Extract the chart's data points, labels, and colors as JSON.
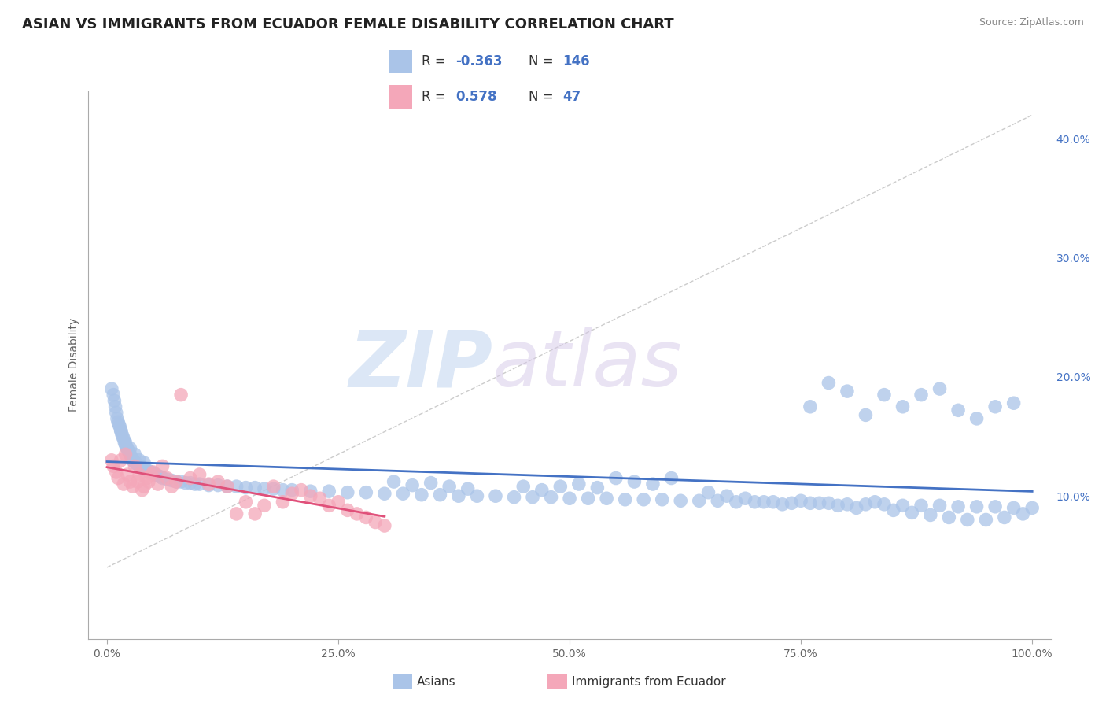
{
  "title": "ASIAN VS IMMIGRANTS FROM ECUADOR FEMALE DISABILITY CORRELATION CHART",
  "source": "Source: ZipAtlas.com",
  "ylabel": "Female Disability",
  "xlim": [
    -0.02,
    1.02
  ],
  "ylim": [
    -0.02,
    0.44
  ],
  "yticks": [
    0.1,
    0.2,
    0.3,
    0.4
  ],
  "ytick_labels": [
    "10.0%",
    "20.0%",
    "30.0%",
    "40.0%"
  ],
  "xticks": [
    0.0,
    0.25,
    0.5,
    0.75,
    1.0
  ],
  "xtick_labels": [
    "0.0%",
    "25.0%",
    "50.0%",
    "75.0%",
    "100.0%"
  ],
  "color_asian": "#aac4e8",
  "color_ecuador": "#f4a7b9",
  "trend_color_asian": "#4472c4",
  "trend_color_ecuador": "#e0507a",
  "watermark_zip": "ZIP",
  "watermark_atlas": "atlas",
  "title_fontsize": 13,
  "axis_label_fontsize": 10,
  "tick_fontsize": 10,
  "grid_color": "#cccccc",
  "background_color": "#ffffff",
  "asian_x": [
    0.005,
    0.007,
    0.008,
    0.009,
    0.01,
    0.011,
    0.012,
    0.013,
    0.014,
    0.015,
    0.016,
    0.017,
    0.018,
    0.019,
    0.02,
    0.021,
    0.022,
    0.023,
    0.024,
    0.025,
    0.026,
    0.027,
    0.028,
    0.029,
    0.03,
    0.032,
    0.034,
    0.036,
    0.038,
    0.04,
    0.042,
    0.045,
    0.048,
    0.05,
    0.053,
    0.055,
    0.058,
    0.06,
    0.065,
    0.07,
    0.075,
    0.08,
    0.085,
    0.09,
    0.095,
    0.1,
    0.11,
    0.12,
    0.13,
    0.14,
    0.15,
    0.16,
    0.17,
    0.18,
    0.19,
    0.2,
    0.22,
    0.24,
    0.26,
    0.28,
    0.3,
    0.32,
    0.34,
    0.36,
    0.38,
    0.4,
    0.42,
    0.44,
    0.46,
    0.48,
    0.5,
    0.52,
    0.54,
    0.56,
    0.58,
    0.6,
    0.62,
    0.64,
    0.66,
    0.68,
    0.7,
    0.72,
    0.74,
    0.76,
    0.78,
    0.8,
    0.82,
    0.84,
    0.86,
    0.88,
    0.9,
    0.92,
    0.94,
    0.96,
    0.98,
    1.0,
    0.55,
    0.57,
    0.59,
    0.61,
    0.45,
    0.47,
    0.49,
    0.51,
    0.53,
    0.31,
    0.33,
    0.35,
    0.37,
    0.39,
    0.65,
    0.67,
    0.69,
    0.71,
    0.73,
    0.75,
    0.77,
    0.79,
    0.81,
    0.83,
    0.85,
    0.87,
    0.89,
    0.91,
    0.93,
    0.95,
    0.97,
    0.99,
    0.76,
    0.78,
    0.8,
    0.82,
    0.84,
    0.86,
    0.88,
    0.9,
    0.92,
    0.94,
    0.96,
    0.98,
    0.015,
    0.02,
    0.025,
    0.03,
    0.035,
    0.04
  ],
  "asian_y": [
    0.19,
    0.185,
    0.18,
    0.175,
    0.17,
    0.165,
    0.162,
    0.16,
    0.158,
    0.155,
    0.152,
    0.15,
    0.148,
    0.145,
    0.143,
    0.141,
    0.14,
    0.138,
    0.136,
    0.135,
    0.133,
    0.132,
    0.13,
    0.129,
    0.128,
    0.127,
    0.126,
    0.125,
    0.124,
    0.123,
    0.122,
    0.121,
    0.12,
    0.119,
    0.118,
    0.117,
    0.116,
    0.115,
    0.114,
    0.113,
    0.112,
    0.112,
    0.111,
    0.111,
    0.11,
    0.11,
    0.109,
    0.109,
    0.108,
    0.108,
    0.107,
    0.107,
    0.106,
    0.106,
    0.105,
    0.105,
    0.104,
    0.104,
    0.103,
    0.103,
    0.102,
    0.102,
    0.101,
    0.101,
    0.1,
    0.1,
    0.1,
    0.099,
    0.099,
    0.099,
    0.098,
    0.098,
    0.098,
    0.097,
    0.097,
    0.097,
    0.096,
    0.096,
    0.096,
    0.095,
    0.095,
    0.095,
    0.094,
    0.094,
    0.094,
    0.093,
    0.093,
    0.093,
    0.092,
    0.092,
    0.092,
    0.091,
    0.091,
    0.091,
    0.09,
    0.09,
    0.115,
    0.112,
    0.11,
    0.115,
    0.108,
    0.105,
    0.108,
    0.11,
    0.107,
    0.112,
    0.109,
    0.111,
    0.108,
    0.106,
    0.103,
    0.1,
    0.098,
    0.095,
    0.093,
    0.096,
    0.094,
    0.092,
    0.09,
    0.095,
    0.088,
    0.086,
    0.084,
    0.082,
    0.08,
    0.08,
    0.082,
    0.085,
    0.175,
    0.195,
    0.188,
    0.168,
    0.185,
    0.175,
    0.185,
    0.19,
    0.172,
    0.165,
    0.175,
    0.178,
    0.155,
    0.145,
    0.14,
    0.135,
    0.13,
    0.128
  ],
  "ecuador_x": [
    0.005,
    0.007,
    0.01,
    0.012,
    0.015,
    0.018,
    0.02,
    0.022,
    0.025,
    0.028,
    0.03,
    0.033,
    0.035,
    0.038,
    0.04,
    0.043,
    0.045,
    0.048,
    0.05,
    0.055,
    0.06,
    0.065,
    0.07,
    0.075,
    0.08,
    0.09,
    0.1,
    0.11,
    0.12,
    0.13,
    0.14,
    0.15,
    0.16,
    0.17,
    0.18,
    0.19,
    0.2,
    0.21,
    0.22,
    0.23,
    0.24,
    0.25,
    0.26,
    0.27,
    0.28,
    0.29,
    0.3
  ],
  "ecuador_y": [
    0.13,
    0.125,
    0.12,
    0.115,
    0.13,
    0.11,
    0.135,
    0.118,
    0.112,
    0.108,
    0.125,
    0.112,
    0.118,
    0.105,
    0.108,
    0.115,
    0.112,
    0.118,
    0.12,
    0.11,
    0.125,
    0.115,
    0.108,
    0.112,
    0.185,
    0.115,
    0.118,
    0.11,
    0.112,
    0.108,
    0.085,
    0.095,
    0.085,
    0.092,
    0.108,
    0.095,
    0.102,
    0.105,
    0.1,
    0.098,
    0.092,
    0.095,
    0.088,
    0.085,
    0.082,
    0.078,
    0.075
  ]
}
